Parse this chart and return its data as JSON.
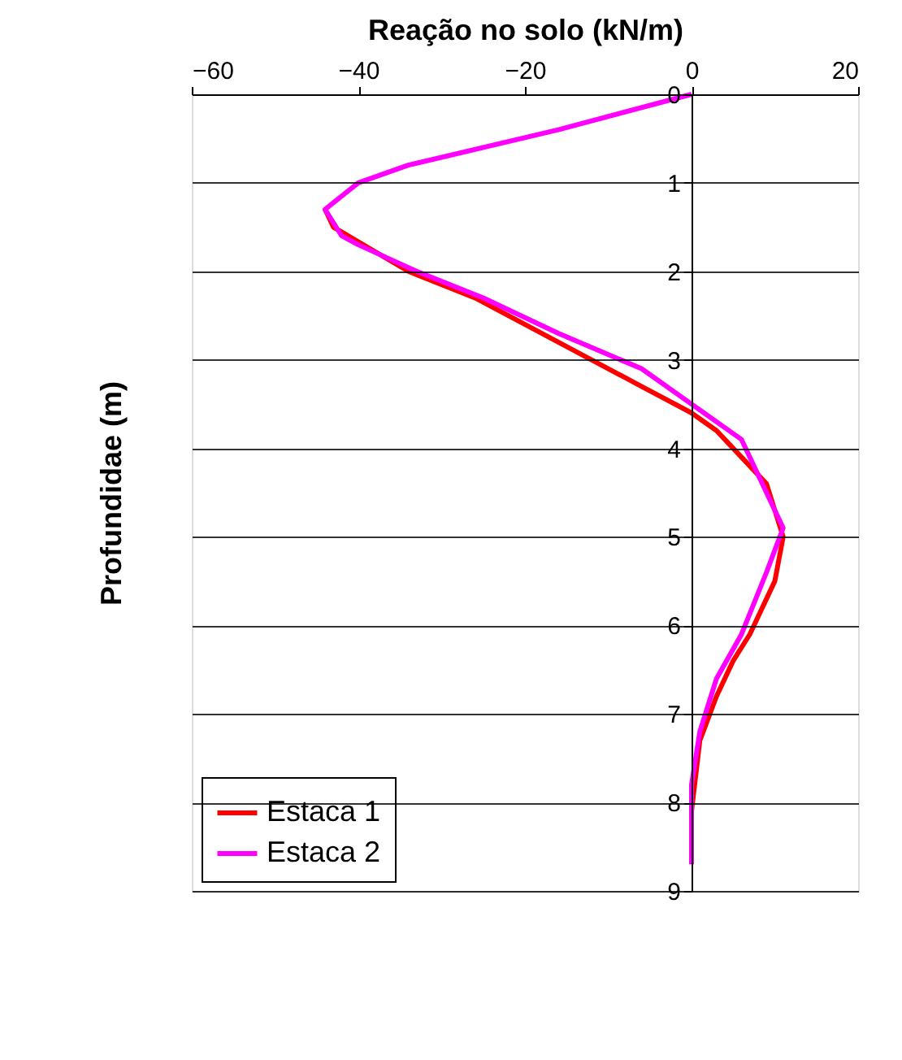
{
  "chart_data": {
    "type": "line",
    "orientation": "horizontal",
    "xlabel": "Reação no solo (kN/m)",
    "ylabel": "Profundidae (m)",
    "xlim": [
      -60,
      20
    ],
    "xticks": [
      -60,
      -40,
      -20,
      0,
      20
    ],
    "ylim": [
      9,
      0
    ],
    "yticks": [
      0,
      1,
      2,
      3,
      4,
      5,
      6,
      7,
      8,
      9
    ],
    "grid": "y",
    "legend": "bottom left",
    "line_style": "solid",
    "marker": "none",
    "series": [
      {
        "name": "Estaca 1",
        "color": "#ff0000",
        "values": [
          -44,
          -43,
          -34,
          -26,
          -16,
          -6,
          0,
          3,
          4,
          9,
          11,
          10,
          7,
          5,
          3,
          1,
          0,
          0
        ],
        "x": [
          1.3,
          1.5,
          2.0,
          2.3,
          2.8,
          3.3,
          3.6,
          3.8,
          3.9,
          4.4,
          5.0,
          5.5,
          6.1,
          6.4,
          6.8,
          7.3,
          8.1,
          8.5
        ]
      },
      {
        "name": "Estaca 2",
        "color": "#ff00ff",
        "values": [
          0,
          -16,
          -34,
          -40,
          -44,
          -42,
          -40,
          -33,
          -25,
          -16,
          -6,
          0,
          3,
          6,
          9,
          11,
          9,
          6,
          3,
          1,
          0,
          0
        ],
        "x": [
          0,
          0.4,
          0.8,
          1.0,
          1.3,
          1.6,
          1.7,
          2.0,
          2.3,
          2.7,
          3.1,
          3.5,
          3.7,
          3.9,
          4.5,
          4.9,
          5.4,
          6.1,
          6.6,
          7.2,
          7.8,
          8.7
        ]
      }
    ]
  }
}
